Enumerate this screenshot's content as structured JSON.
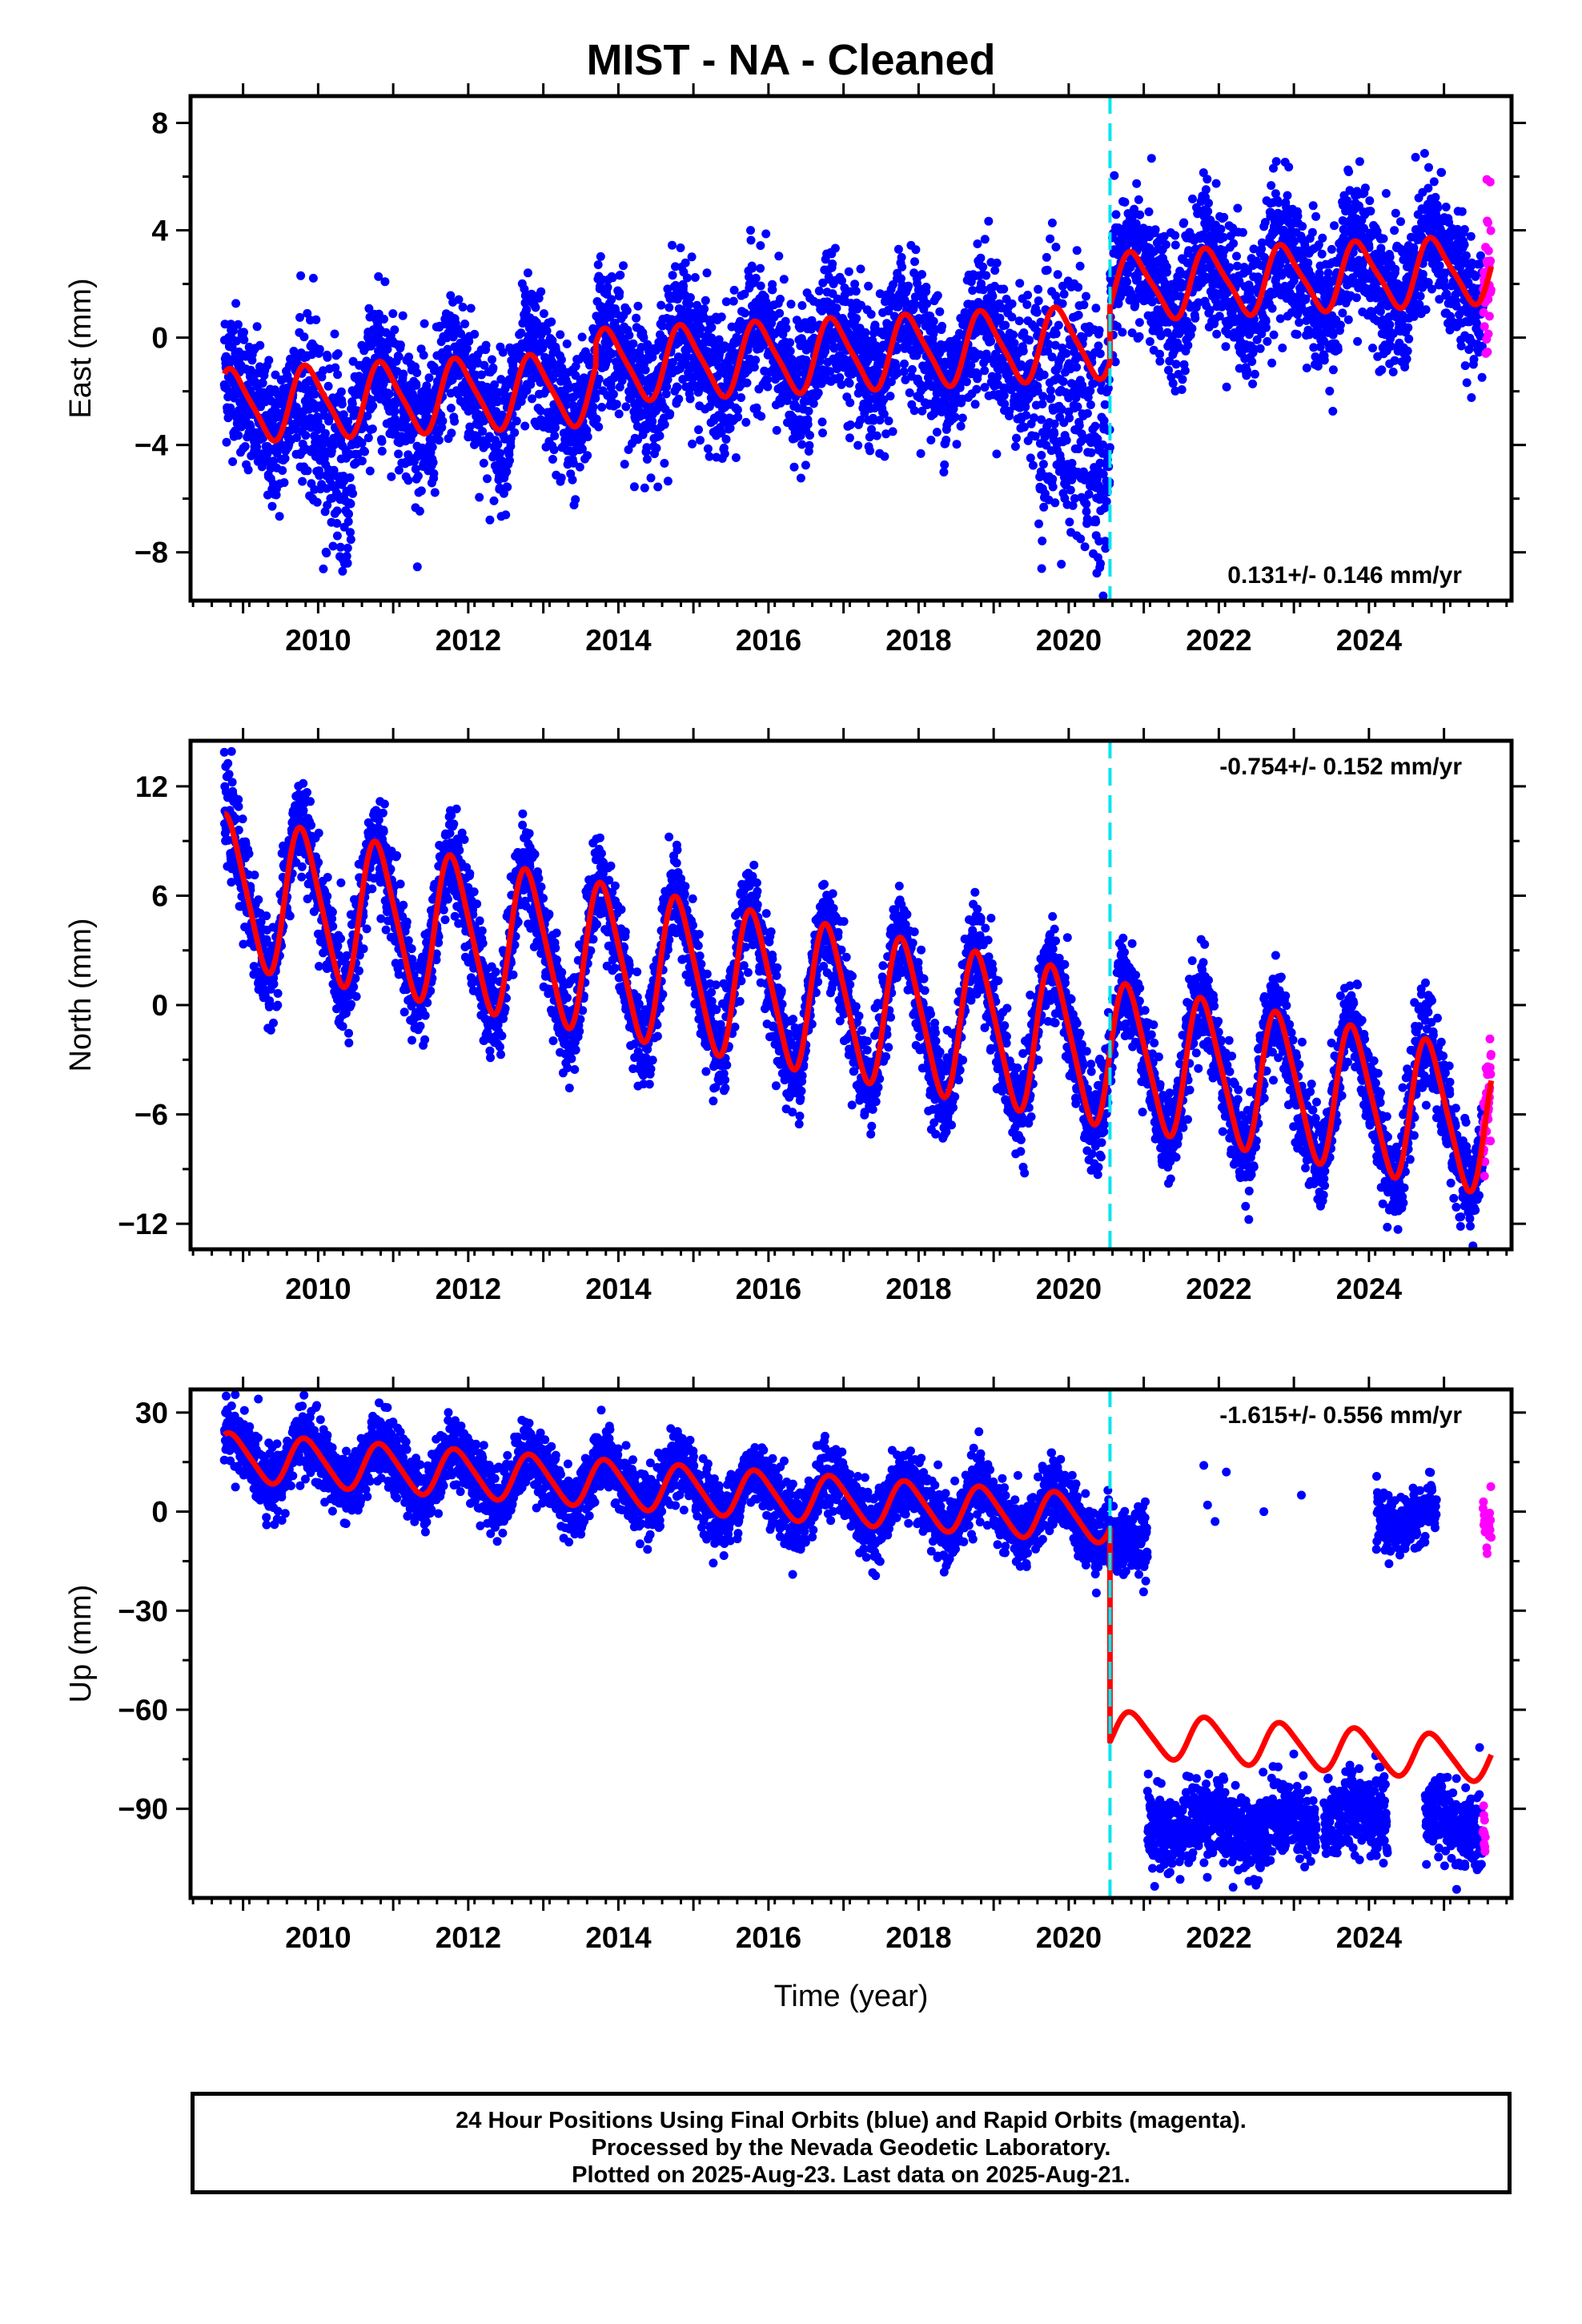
{
  "title": "MIST  - NA - Cleaned",
  "footer": {
    "line1": "24 Hour Positions Using Final Orbits (blue) and Rapid Orbits (magenta).",
    "line2": "Processed by the Nevada Geodetic Laboratory.",
    "line3": "Plotted on 2025-Aug-23. Last data on 2025-Aug-21."
  },
  "colors": {
    "final_orbits": "#0000ff",
    "rapid_orbits": "#ff00ff",
    "model": "#ff0000",
    "offset_line": "#00e5ee",
    "frame": "#000000"
  },
  "chart_data": [
    {
      "type": "scatter",
      "component": "east",
      "title": "MIST  - NA - Cleaned",
      "ylabel": "East (mm)",
      "xlabel": "",
      "xlim": [
        2008.3,
        2025.9
      ],
      "ylim": [
        -9.8,
        9.0
      ],
      "yticks": [
        -8,
        -4,
        0,
        4,
        8
      ],
      "yticklabels": [
        "−8",
        "−4",
        "0",
        "4",
        "8"
      ],
      "xticks": [
        2010,
        2012,
        2014,
        2016,
        2018,
        2020,
        2022,
        2024
      ],
      "xticklabels": [
        "2010",
        "2012",
        "2014",
        "2016",
        "2018",
        "2020",
        "2022",
        "2024"
      ],
      "rate_label": "0.131+/- 0.146 mm/yr",
      "rate_position": "bottom-right",
      "offset_epoch": 2020.55,
      "data_start": 2008.75,
      "data_end": 2025.63,
      "rapid_start": 2025.52,
      "model": {
        "segments": [
          {
            "start": 2008.75,
            "end": 2013.7,
            "offset": -1.6,
            "trend": 0.131,
            "ref": 2016.0,
            "annual_amp": 1.3,
            "annual_phase": 0.62,
            "semi_amp": 0.25
          },
          {
            "start": 2013.7,
            "end": 2020.55,
            "offset": -0.75,
            "trend": 0.131,
            "ref": 2016.0,
            "annual_amp": 1.3,
            "annual_phase": 0.62,
            "semi_amp": 0.25
          },
          {
            "start": 2020.55,
            "end": 2025.63,
            "offset": 2.2,
            "trend": 0.131,
            "ref": 2023.0,
            "annual_amp": 1.2,
            "annual_phase": 0.62,
            "semi_amp": 0.25
          }
        ]
      },
      "scatter_sigma": 1.3,
      "anomalies": [
        {
          "start": 2009.75,
          "end": 2010.45,
          "shift": -2.4
        },
        {
          "start": 2019.6,
          "end": 2020.55,
          "shift": -4.2
        }
      ]
    },
    {
      "type": "scatter",
      "component": "north",
      "ylabel": "North (mm)",
      "xlabel": "",
      "xlim": [
        2008.3,
        2025.9
      ],
      "ylim": [
        -13.4,
        14.5
      ],
      "yticks": [
        -12,
        -6,
        0,
        6,
        12
      ],
      "yticklabels": [
        "−12",
        "−6",
        "0",
        "6",
        "12"
      ],
      "xticks": [
        2010,
        2012,
        2014,
        2016,
        2018,
        2020,
        2022,
        2024
      ],
      "xticklabels": [
        "2010",
        "2012",
        "2014",
        "2016",
        "2018",
        "2020",
        "2022",
        "2024"
      ],
      "rate_label": "-0.754+/- 0.152 mm/yr",
      "rate_position": "top-right",
      "offset_epoch": 2020.55,
      "data_start": 2008.75,
      "data_end": 2025.63,
      "rapid_start": 2025.52,
      "model": {
        "segments": [
          {
            "start": 2008.75,
            "end": 2020.55,
            "offset": 2.0,
            "trend": -0.754,
            "ref": 2014.5,
            "annual_amp": 4.0,
            "annual_phase": 0.55,
            "semi_amp": 0.6
          },
          {
            "start": 2020.55,
            "end": 2025.63,
            "offset": -4.5,
            "trend": -0.754,
            "ref": 2023.0,
            "annual_amp": 3.8,
            "annual_phase": 0.55,
            "semi_amp": 0.6
          }
        ]
      },
      "scatter_sigma": 1.3,
      "anomalies": []
    },
    {
      "type": "scatter",
      "component": "up",
      "ylabel": "Up (mm)",
      "xlabel": "Time (year)",
      "xlim": [
        2008.3,
        2025.9
      ],
      "ylim": [
        -117,
        37
      ],
      "yticks": [
        -90,
        -60,
        -30,
        0,
        30
      ],
      "yticklabels": [
        "−90",
        "−60",
        "−30",
        "0",
        "30"
      ],
      "xticks": [
        2010,
        2012,
        2014,
        2016,
        2018,
        2020,
        2022,
        2024
      ],
      "xticklabels": [
        "2010",
        "2012",
        "2014",
        "2016",
        "2018",
        "2020",
        "2022",
        "2024"
      ],
      "rate_label": "-1.615+/- 0.556 mm/yr",
      "rate_position": "top-right",
      "offset_epoch": 2020.55,
      "data_start": 2008.75,
      "data_end": 2025.63,
      "rapid_start": 2025.52,
      "model": {
        "segments": [
          {
            "start": 2008.75,
            "end": 2020.55,
            "offset": 9.0,
            "trend": -1.615,
            "ref": 2013.5,
            "annual_amp": 7.0,
            "annual_phase": 0.6,
            "semi_amp": 1.0
          },
          {
            "start": 2020.55,
            "end": 2025.63,
            "offset": -71.0,
            "trend": -1.615,
            "ref": 2023.0,
            "annual_amp": 6.5,
            "annual_phase": 0.6,
            "semi_amp": 1.0
          }
        ]
      },
      "scatter_sigma": 5.0,
      "data_groups": [
        {
          "start": 2008.75,
          "end": 2021.05,
          "segment": 0,
          "extend_after_offset_level": 3.0
        },
        {
          "start": 2021.05,
          "end": 2023.3,
          "fixed_mean": -95.0,
          "sigma": 6.0
        },
        {
          "start": 2023.4,
          "end": 2024.25,
          "fixed_mean": -92.0,
          "sigma": 6.0
        },
        {
          "start": 2024.1,
          "end": 2024.9,
          "fixed_mean": -2.0,
          "sigma": 4.0
        },
        {
          "start": 2024.75,
          "end": 2025.55,
          "fixed_mean": -95.0,
          "sigma": 6.0
        }
      ],
      "outliers": [
        {
          "x": 2021.85,
          "y": 2
        },
        {
          "x": 2021.95,
          "y": -3
        },
        {
          "x": 2022.6,
          "y": 0
        },
        {
          "x": 2022.1,
          "y": 12
        },
        {
          "x": 2023.1,
          "y": 5
        },
        {
          "x": 2021.8,
          "y": 14
        }
      ]
    }
  ]
}
